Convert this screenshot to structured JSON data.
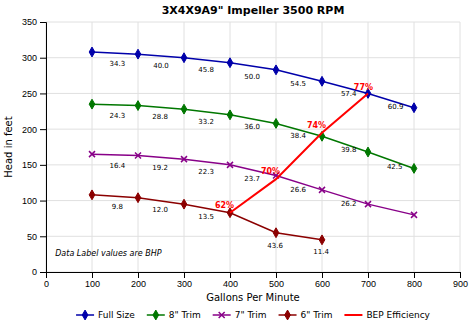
{
  "chart_data": {
    "type": "line",
    "title": "3X4X9A9\" Impeller 3500 RPM",
    "x_label": "Gallons Per Minute",
    "y_label": "Head in feet",
    "xlim": [
      0,
      900
    ],
    "ylim": [
      0,
      350
    ],
    "xticks": [
      0,
      100,
      200,
      300,
      400,
      500,
      600,
      700,
      800,
      900
    ],
    "yticks": [
      0,
      50,
      100,
      150,
      200,
      250,
      300,
      350
    ],
    "grid": true,
    "legend": "bottom",
    "series": [
      {
        "name": "Full Size",
        "color": "#0000AA",
        "marker": "diamond",
        "x": [
          100,
          200,
          300,
          400,
          500,
          600,
          700,
          800
        ],
        "values": [
          308,
          305,
          300,
          293,
          283,
          267,
          250,
          230
        ],
        "labels": [
          "34.3",
          "40.0",
          "45.8",
          "50.0",
          "54.5",
          "57.4",
          "60.9"
        ],
        "label_x": [
          155,
          250,
          348,
          448,
          548,
          658,
          760
        ],
        "label_y": [
          296,
          294,
          288,
          278,
          268,
          254,
          236
        ]
      },
      {
        "name": "8\" Trim",
        "color": "#007700",
        "marker": "diamond",
        "x": [
          100,
          200,
          300,
          400,
          500,
          600,
          700,
          800
        ],
        "values": [
          235,
          233,
          228,
          220,
          208,
          190,
          168,
          145
        ],
        "labels": [
          "24.3",
          "28.8",
          "33.2",
          "36.0",
          "38.4",
          "39.8",
          "42.5"
        ],
        "label_x": [
          155,
          248,
          348,
          448,
          548,
          658,
          758
        ],
        "label_y": [
          224,
          222,
          216,
          208,
          196,
          176,
          152
        ]
      },
      {
        "name": "7\" Trim",
        "color": "#880088",
        "marker": "x",
        "x": [
          100,
          200,
          300,
          400,
          500,
          600,
          700,
          800
        ],
        "values": [
          165,
          163,
          158,
          150,
          135,
          115,
          95,
          80
        ],
        "labels": [
          "16.4",
          "19.2",
          "22.3",
          "23.7",
          "26.6",
          "26.2"
        ],
        "label_x": [
          155,
          248,
          348,
          448,
          548,
          658
        ],
        "label_y": [
          154,
          151,
          146,
          136,
          120,
          100
        ]
      },
      {
        "name": "6\" Trim",
        "color": "#8B0000",
        "marker": "diamond",
        "x": [
          100,
          200,
          300,
          400,
          500,
          600
        ],
        "values": [
          108,
          104,
          95,
          83,
          55,
          45
        ],
        "labels": [
          "9.8",
          "12.0",
          "13.5",
          "43.6",
          "11.4"
        ],
        "label_x": [
          155,
          248,
          348,
          498,
          598
        ],
        "label_y": [
          96,
          92,
          82,
          42,
          33
        ]
      },
      {
        "name": "BEP Efficiency",
        "color": "#FF0000",
        "marker": "none",
        "x": [
          400,
          500,
          600,
          700
        ],
        "values": [
          83,
          130,
          195,
          250
        ],
        "labels": [
          "62%",
          "70%",
          "74%",
          "77%"
        ],
        "label_x": [
          388,
          488,
          588,
          690
        ],
        "label_y": [
          88,
          136,
          200,
          254
        ]
      }
    ],
    "annotations": [
      {
        "text": "Data Label values are BHP",
        "x": 20,
        "y": 22
      }
    ]
  }
}
